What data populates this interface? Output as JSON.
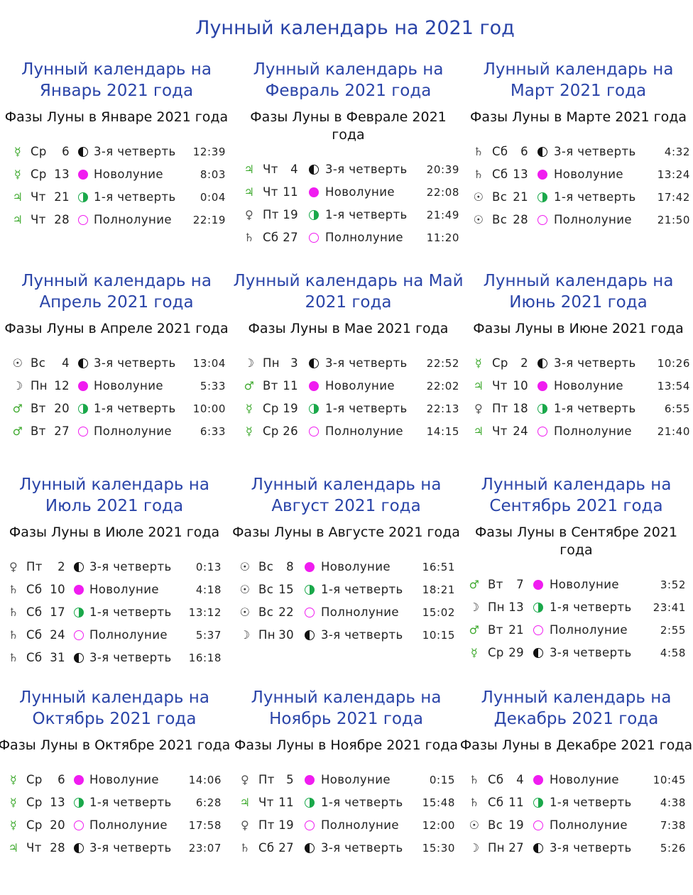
{
  "page_title": "Лунный календарь на 2021 год",
  "phase_colors": {
    "new": "#f01cf0",
    "full": "#f01cf0",
    "first_quarter": "#1aa84a",
    "last_quarter": "#111111"
  },
  "months": [
    {
      "title": "Лунный календарь на Январь 2021 года",
      "subtitle": "Фазы Луны в Январе 2021 года",
      "entries": [
        {
          "planet": "mercury",
          "planet_symbol": "☿",
          "dow": "Ср",
          "day": "6",
          "phase": "last",
          "phase_label": "3-я четверть",
          "time": "12:39"
        },
        {
          "planet": "mercury",
          "planet_symbol": "☿",
          "dow": "Ср",
          "day": "13",
          "phase": "new",
          "phase_label": "Новолуние",
          "time": "8:03"
        },
        {
          "planet": "jupiter",
          "planet_symbol": "♃",
          "dow": "Чт",
          "day": "21",
          "phase": "first",
          "phase_label": "1-я четверть",
          "time": "0:04"
        },
        {
          "planet": "jupiter",
          "planet_symbol": "♃",
          "dow": "Чт",
          "day": "28",
          "phase": "full",
          "phase_label": "Полнолуние",
          "time": "22:19"
        }
      ]
    },
    {
      "title": "Лунный календарь на Февраль 2021 года",
      "subtitle": "Фазы Луны в Феврале 2021 года",
      "entries": [
        {
          "planet": "jupiter",
          "planet_symbol": "♃",
          "dow": "Чт",
          "day": "4",
          "phase": "last",
          "phase_label": "3-я четверть",
          "time": "20:39"
        },
        {
          "planet": "jupiter",
          "planet_symbol": "♃",
          "dow": "Чт",
          "day": "11",
          "phase": "new",
          "phase_label": "Новолуние",
          "time": "22:08"
        },
        {
          "planet": "venus",
          "planet_symbol": "♀",
          "dow": "Пт",
          "day": "19",
          "phase": "first",
          "phase_label": "1-я четверть",
          "time": "21:49"
        },
        {
          "planet": "saturn",
          "planet_symbol": "♄",
          "dow": "Сб",
          "day": "27",
          "phase": "full",
          "phase_label": "Полнолуние",
          "time": "11:20"
        }
      ]
    },
    {
      "title": "Лунный календарь на Март 2021 года",
      "subtitle": "Фазы Луны в Марте 2021 года",
      "entries": [
        {
          "planet": "saturn",
          "planet_symbol": "♄",
          "dow": "Сб",
          "day": "6",
          "phase": "last",
          "phase_label": "3-я четверть",
          "time": "4:32"
        },
        {
          "planet": "saturn",
          "planet_symbol": "♄",
          "dow": "Сб",
          "day": "13",
          "phase": "new",
          "phase_label": "Новолуние",
          "time": "13:24"
        },
        {
          "planet": "sun",
          "planet_symbol": "☉",
          "dow": "Вс",
          "day": "21",
          "phase": "first",
          "phase_label": "1-я четверть",
          "time": "17:42"
        },
        {
          "planet": "sun",
          "planet_symbol": "☉",
          "dow": "Вс",
          "day": "28",
          "phase": "full",
          "phase_label": "Полнолуние",
          "time": "21:50"
        }
      ]
    },
    {
      "title": "Лунный календарь на Апрель 2021 года",
      "subtitle": "Фазы Луны в Апреле 2021 года",
      "entries": [
        {
          "planet": "sun",
          "planet_symbol": "☉",
          "dow": "Вс",
          "day": "4",
          "phase": "last",
          "phase_label": "3-я четверть",
          "time": "13:04"
        },
        {
          "planet": "moon",
          "planet_symbol": "☽",
          "dow": "Пн",
          "day": "12",
          "phase": "new",
          "phase_label": "Новолуние",
          "time": "5:33"
        },
        {
          "planet": "mars",
          "planet_symbol": "♂",
          "dow": "Вт",
          "day": "20",
          "phase": "first",
          "phase_label": "1-я четверть",
          "time": "10:00"
        },
        {
          "planet": "mars",
          "planet_symbol": "♂",
          "dow": "Вт",
          "day": "27",
          "phase": "full",
          "phase_label": "Полнолуние",
          "time": "6:33"
        }
      ]
    },
    {
      "title": "Лунный календарь на Май 2021 года",
      "subtitle": "Фазы Луны в Мае 2021 года",
      "entries": [
        {
          "planet": "moon",
          "planet_symbol": "☽",
          "dow": "Пн",
          "day": "3",
          "phase": "last",
          "phase_label": "3-я четверть",
          "time": "22:52"
        },
        {
          "planet": "mars",
          "planet_symbol": "♂",
          "dow": "Вт",
          "day": "11",
          "phase": "new",
          "phase_label": "Новолуние",
          "time": "22:02"
        },
        {
          "planet": "mercury",
          "planet_symbol": "☿",
          "dow": "Ср",
          "day": "19",
          "phase": "first",
          "phase_label": "1-я четверть",
          "time": "22:13"
        },
        {
          "planet": "mercury",
          "planet_symbol": "☿",
          "dow": "Ср",
          "day": "26",
          "phase": "full",
          "phase_label": "Полнолуние",
          "time": "14:15"
        }
      ]
    },
    {
      "title": "Лунный календарь на Июнь 2021 года",
      "subtitle": "Фазы Луны в Июне 2021 года",
      "entries": [
        {
          "planet": "mercury",
          "planet_symbol": "☿",
          "dow": "Ср",
          "day": "2",
          "phase": "last",
          "phase_label": "3-я четверть",
          "time": "10:26"
        },
        {
          "planet": "jupiter",
          "planet_symbol": "♃",
          "dow": "Чт",
          "day": "10",
          "phase": "new",
          "phase_label": "Новолуние",
          "time": "13:54"
        },
        {
          "planet": "venus",
          "planet_symbol": "♀",
          "dow": "Пт",
          "day": "18",
          "phase": "first",
          "phase_label": "1-я четверть",
          "time": "6:55"
        },
        {
          "planet": "jupiter",
          "planet_symbol": "♃",
          "dow": "Чт",
          "day": "24",
          "phase": "full",
          "phase_label": "Полнолуние",
          "time": "21:40"
        }
      ]
    },
    {
      "title": "Лунный календарь на Июль 2021 года",
      "subtitle": "Фазы Луны в Июле 2021 года",
      "entries": [
        {
          "planet": "venus",
          "planet_symbol": "♀",
          "dow": "Пт",
          "day": "2",
          "phase": "last",
          "phase_label": "3-я четверть",
          "time": "0:13"
        },
        {
          "planet": "saturn",
          "planet_symbol": "♄",
          "dow": "Сб",
          "day": "10",
          "phase": "new",
          "phase_label": "Новолуние",
          "time": "4:18"
        },
        {
          "planet": "saturn",
          "planet_symbol": "♄",
          "dow": "Сб",
          "day": "17",
          "phase": "first",
          "phase_label": "1-я четверть",
          "time": "13:12"
        },
        {
          "planet": "saturn",
          "planet_symbol": "♄",
          "dow": "Сб",
          "day": "24",
          "phase": "full",
          "phase_label": "Полнолуние",
          "time": "5:37"
        },
        {
          "planet": "saturn",
          "planet_symbol": "♄",
          "dow": "Сб",
          "day": "31",
          "phase": "last",
          "phase_label": "3-я четверть",
          "time": "16:18"
        }
      ]
    },
    {
      "title": "Лунный календарь на Август 2021 года",
      "subtitle": "Фазы Луны в Августе 2021 года",
      "entries": [
        {
          "planet": "sun",
          "planet_symbol": "☉",
          "dow": "Вс",
          "day": "8",
          "phase": "new",
          "phase_label": "Новолуние",
          "time": "16:51"
        },
        {
          "planet": "sun",
          "planet_symbol": "☉",
          "dow": "Вс",
          "day": "15",
          "phase": "first",
          "phase_label": "1-я четверть",
          "time": "18:21"
        },
        {
          "planet": "sun",
          "planet_symbol": "☉",
          "dow": "Вс",
          "day": "22",
          "phase": "full",
          "phase_label": "Полнолуние",
          "time": "15:02"
        },
        {
          "planet": "moon",
          "planet_symbol": "☽",
          "dow": "Пн",
          "day": "30",
          "phase": "last",
          "phase_label": "3-я четверть",
          "time": "10:15"
        }
      ]
    },
    {
      "title": "Лунный календарь на Сентябрь 2021 года",
      "subtitle": "Фазы Луны в Сентябре 2021 года",
      "entries": [
        {
          "planet": "mars",
          "planet_symbol": "♂",
          "dow": "Вт",
          "day": "7",
          "phase": "new",
          "phase_label": "Новолуние",
          "time": "3:52"
        },
        {
          "planet": "moon",
          "planet_symbol": "☽",
          "dow": "Пн",
          "day": "13",
          "phase": "first",
          "phase_label": "1-я четверть",
          "time": "23:41"
        },
        {
          "planet": "mars",
          "planet_symbol": "♂",
          "dow": "Вт",
          "day": "21",
          "phase": "full",
          "phase_label": "Полнолуние",
          "time": "2:55"
        },
        {
          "planet": "mercury",
          "planet_symbol": "☿",
          "dow": "Ср",
          "day": "29",
          "phase": "last",
          "phase_label": "3-я четверть",
          "time": "4:58"
        }
      ]
    },
    {
      "title": "Лунный календарь на Октябрь 2021 года",
      "subtitle": "Фазы Луны в Октябре 2021 года",
      "entries": [
        {
          "planet": "mercury",
          "planet_symbol": "☿",
          "dow": "Ср",
          "day": "6",
          "phase": "new",
          "phase_label": "Новолуние",
          "time": "14:06"
        },
        {
          "planet": "mercury",
          "planet_symbol": "☿",
          "dow": "Ср",
          "day": "13",
          "phase": "first",
          "phase_label": "1-я четверть",
          "time": "6:28"
        },
        {
          "planet": "mercury",
          "planet_symbol": "☿",
          "dow": "Ср",
          "day": "20",
          "phase": "full",
          "phase_label": "Полнолуние",
          "time": "17:58"
        },
        {
          "planet": "jupiter",
          "planet_symbol": "♃",
          "dow": "Чт",
          "day": "28",
          "phase": "last",
          "phase_label": "3-я четверть",
          "time": "23:07"
        }
      ]
    },
    {
      "title": "Лунный календарь на Ноябрь 2021 года",
      "subtitle": "Фазы Луны в Ноябре 2021 года",
      "entries": [
        {
          "planet": "venus",
          "planet_symbol": "♀",
          "dow": "Пт",
          "day": "5",
          "phase": "new",
          "phase_label": "Новолуние",
          "time": "0:15"
        },
        {
          "planet": "jupiter",
          "planet_symbol": "♃",
          "dow": "Чт",
          "day": "11",
          "phase": "first",
          "phase_label": "1-я четверть",
          "time": "15:48"
        },
        {
          "planet": "venus",
          "planet_symbol": "♀",
          "dow": "Пт",
          "day": "19",
          "phase": "full",
          "phase_label": "Полнолуние",
          "time": "12:00"
        },
        {
          "planet": "saturn",
          "planet_symbol": "♄",
          "dow": "Сб",
          "day": "27",
          "phase": "last",
          "phase_label": "3-я четверть",
          "time": "15:30"
        }
      ]
    },
    {
      "title": "Лунный календарь на Декабрь 2021 года",
      "subtitle": "Фазы Луны в Декабре 2021 года",
      "entries": [
        {
          "planet": "saturn",
          "planet_symbol": "♄",
          "dow": "Сб",
          "day": "4",
          "phase": "new",
          "phase_label": "Новолуние",
          "time": "10:45"
        },
        {
          "planet": "saturn",
          "planet_symbol": "♄",
          "dow": "Сб",
          "day": "11",
          "phase": "first",
          "phase_label": "1-я четверть",
          "time": "4:38"
        },
        {
          "planet": "sun",
          "planet_symbol": "☉",
          "dow": "Вс",
          "day": "19",
          "phase": "full",
          "phase_label": "Полнолуние",
          "time": "7:38"
        },
        {
          "planet": "moon",
          "planet_symbol": "☽",
          "dow": "Пн",
          "day": "27",
          "phase": "last",
          "phase_label": "3-я четверть",
          "time": "5:26"
        }
      ]
    }
  ]
}
